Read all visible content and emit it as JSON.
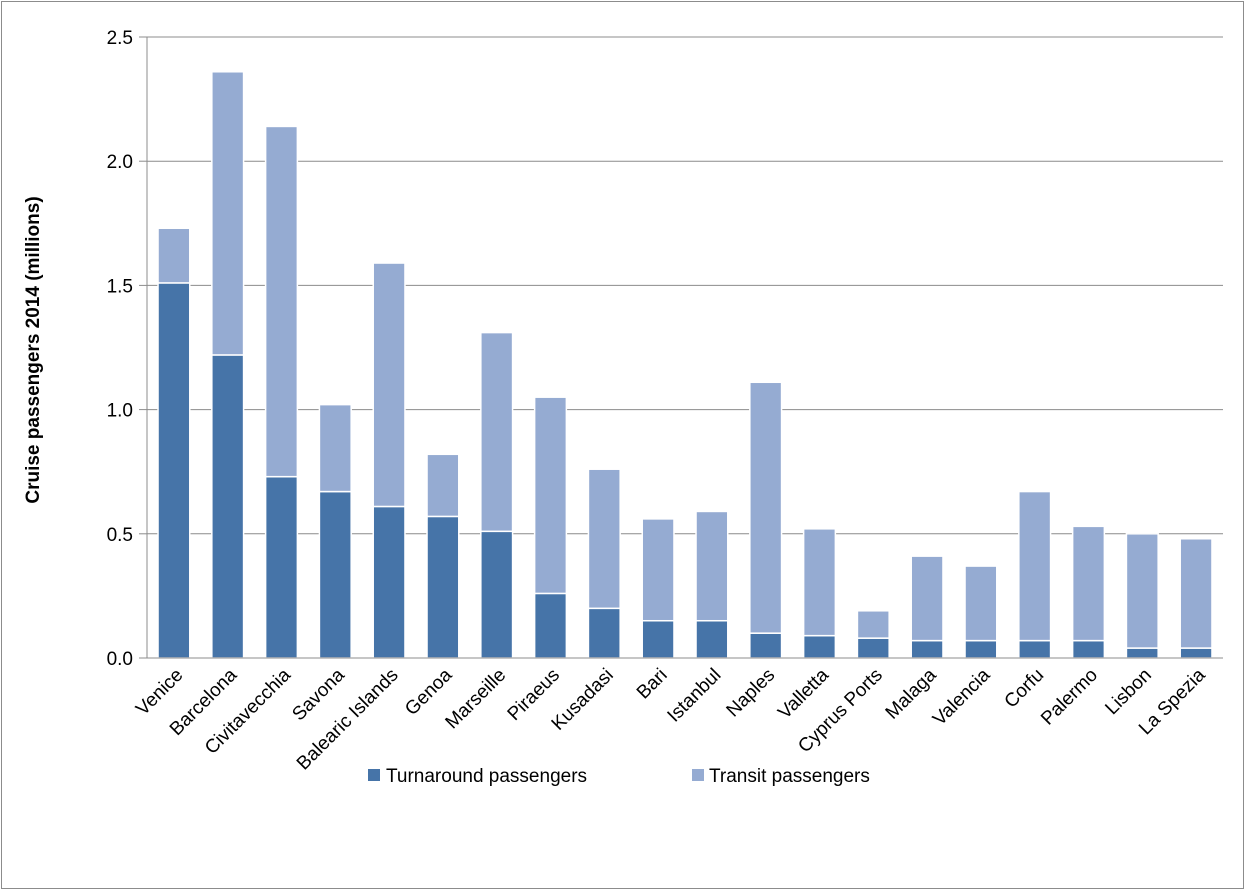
{
  "colors": {
    "turnaround": "#4674a8",
    "transit": "#95abd2",
    "grid": "#8c8c8c",
    "axis": "#8c8c8c"
  },
  "chart_data": {
    "type": "bar",
    "stacked": true,
    "title": "",
    "xlabel": "",
    "ylabel": "Cruise passengers 2014 (millions)",
    "ylim": [
      0,
      2.5
    ],
    "yticks": [
      "0.0",
      "0.5",
      "1.0",
      "1.5",
      "2.0",
      "2.5"
    ],
    "grid": true,
    "legend_position": "bottom",
    "categories": [
      "Venice",
      "Barcelona",
      "Civitavecchia",
      "Savona",
      "Balearic Islands",
      "Genoa",
      "Marseille",
      "Piraeus",
      "Kusadasi",
      "Bari",
      "Istanbul",
      "Naples",
      "Valletta",
      "Cyprus Ports",
      "Malaga",
      "Valencia",
      "Corfu",
      "Palermo",
      "Lisbon",
      "La Spezia"
    ],
    "series": [
      {
        "name": "Turnaround passengers",
        "values": [
          1.51,
          1.22,
          0.73,
          0.67,
          0.61,
          0.57,
          0.51,
          0.26,
          0.2,
          0.15,
          0.15,
          0.1,
          0.09,
          0.08,
          0.07,
          0.07,
          0.07,
          0.07,
          0.04,
          0.04
        ]
      },
      {
        "name": "Transit passengers",
        "values": [
          0.22,
          1.14,
          1.41,
          0.35,
          0.98,
          0.25,
          0.8,
          0.79,
          0.56,
          0.41,
          0.44,
          1.01,
          0.43,
          0.11,
          0.34,
          0.3,
          0.6,
          0.46,
          0.46,
          0.44
        ]
      }
    ]
  }
}
